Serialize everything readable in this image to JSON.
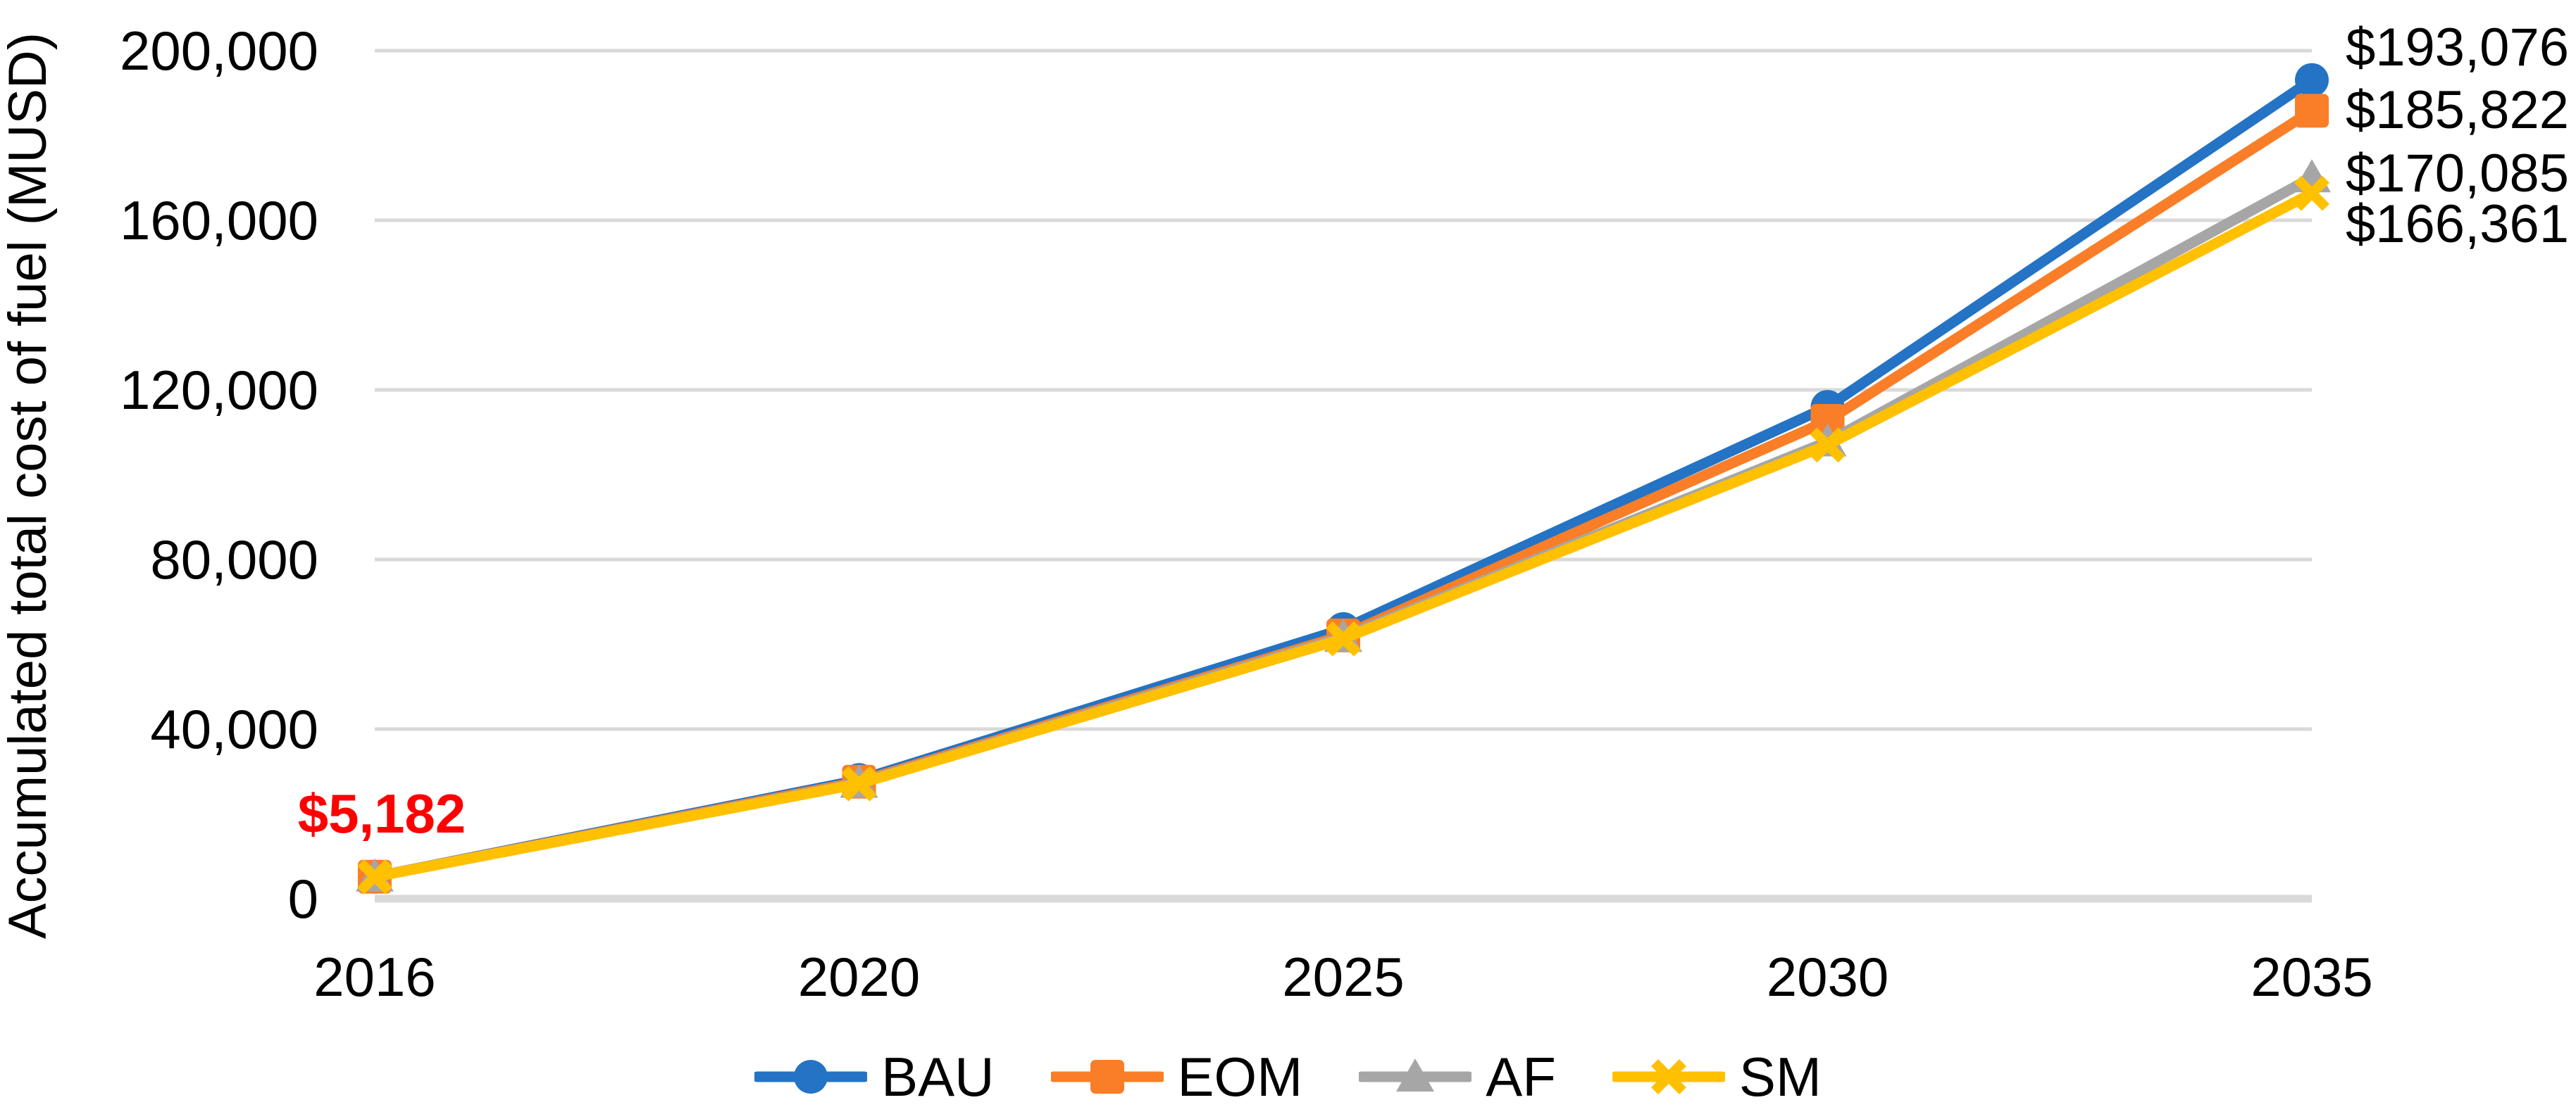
{
  "chart_data": {
    "type": "line",
    "title": "",
    "categories": [
      "2016",
      "2020",
      "2025",
      "2030",
      "2035"
    ],
    "series": [
      {
        "name": "BAU",
        "color": "#2473C5",
        "marker": "circle",
        "values": [
          5182,
          28000,
          63600,
          116000,
          193076
        ],
        "end_label": "$193,076",
        "end_label_dy": -46
      },
      {
        "name": "EOM",
        "color": "#F97E27",
        "marker": "square",
        "values": [
          5182,
          27600,
          62100,
          112700,
          185822
        ],
        "end_label": "$185,822",
        "end_label_dy": 0
      },
      {
        "name": "AF",
        "color": "#A6A6A6",
        "marker": "triangle",
        "values": [
          5182,
          27300,
          61700,
          107800,
          170085
        ],
        "end_label": "$170,085",
        "end_label_dy": -5
      },
      {
        "name": "SM",
        "color": "#FFC000",
        "marker": "x",
        "values": [
          5182,
          27100,
          61300,
          107000,
          166361
        ],
        "end_label": "$166,361",
        "end_label_dy": 44
      }
    ],
    "xlabel": "",
    "ylabel": "Accumulated total cost of fuel (MUSD)",
    "ylim": [
      0,
      200000
    ],
    "yticks": [
      {
        "value": 0,
        "label": "0"
      },
      {
        "value": 40000,
        "label": "40,000"
      },
      {
        "value": 80000,
        "label": "80,000"
      },
      {
        "value": 120000,
        "label": "120,000"
      },
      {
        "value": 160000,
        "label": "160,000"
      },
      {
        "value": 200000,
        "label": "200,000"
      }
    ],
    "grid": true,
    "legend_position": "bottom",
    "annotation": {
      "text": "$5,182",
      "color": "#FF0000",
      "attached_to": "2016"
    },
    "gridline_color": "#D9D9D9",
    "axis_line_color": "#D9D9D9",
    "text_color": "#000000"
  }
}
